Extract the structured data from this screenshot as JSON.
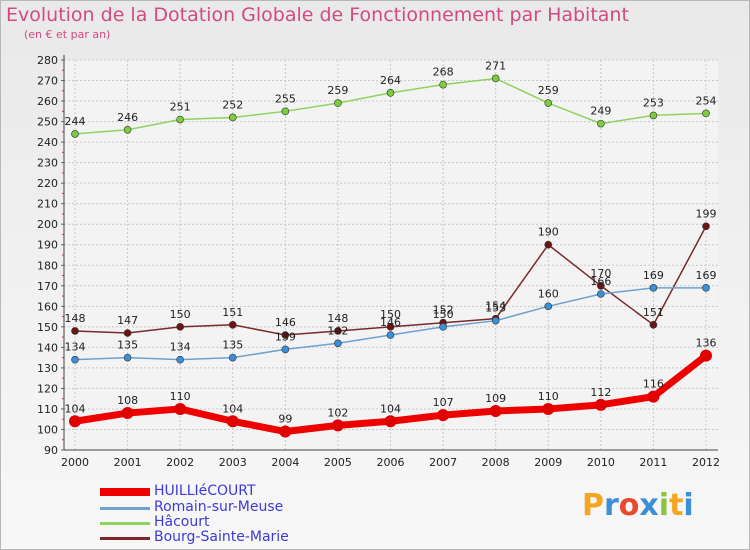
{
  "title": "Evolution de la Dotation Globale de Fonctionnement par Habitant",
  "subtitle": "(en € et par an)",
  "logo": {
    "text": "Proxiti",
    "letters": [
      "P",
      "r",
      "o",
      "x",
      "i",
      "t",
      "i"
    ],
    "colors": [
      "#f4a623",
      "#3a8fd8",
      "#e8482c",
      "#3a8fd8",
      "#8bc53f",
      "#f4a623",
      "#3a8fd8"
    ]
  },
  "chart_data": {
    "type": "line",
    "title": "Evolution de la Dotation Globale de Fonctionnement par Habitant",
    "ylabel": "(en € et par an)",
    "xlabel": "",
    "ylim": [
      90,
      280
    ],
    "ytick_step": 10,
    "grid": true,
    "categories": [
      "2000",
      "2001",
      "2002",
      "2003",
      "2004",
      "2005",
      "2006",
      "2007",
      "2008",
      "2009",
      "2010",
      "2011",
      "2012"
    ],
    "series": [
      {
        "name": "HUILLIéCOURT",
        "color": "#ee0000",
        "marker": "#e00000",
        "width": 7,
        "radius": 6,
        "values": [
          104,
          108,
          110,
          104,
          99,
          102,
          104,
          107,
          109,
          110,
          112,
          116,
          136
        ]
      },
      {
        "name": "Romain-sur-Meuse",
        "color": "#6fa0d0",
        "marker": "#3a8fd8",
        "width": 1.5,
        "radius": 3.5,
        "values": [
          134,
          135,
          134,
          135,
          139,
          142,
          146,
          150,
          153,
          160,
          166,
          169,
          169
        ],
        "labels": [
          "134",
          "135",
          "134",
          "135",
          "139",
          "142",
          "146",
          "150",
          "153",
          "160",
          "166",
          "169",
          "169"
        ]
      },
      {
        "name": "Hâcourt",
        "color": "#8fd35f",
        "marker": "#7ccc3c",
        "width": 1.5,
        "radius": 3.5,
        "values": [
          244,
          246,
          251,
          252,
          255,
          259,
          264,
          268,
          271,
          259,
          249,
          253,
          254
        ]
      },
      {
        "name": "Bourg-Sainte-Marie",
        "color": "#7a2a2a",
        "marker": "#6b1414",
        "width": 1.5,
        "radius": 3.5,
        "values": [
          148,
          147,
          150,
          151,
          146,
          148,
          150,
          152,
          154,
          190,
          170,
          151,
          199
        ]
      }
    ]
  }
}
